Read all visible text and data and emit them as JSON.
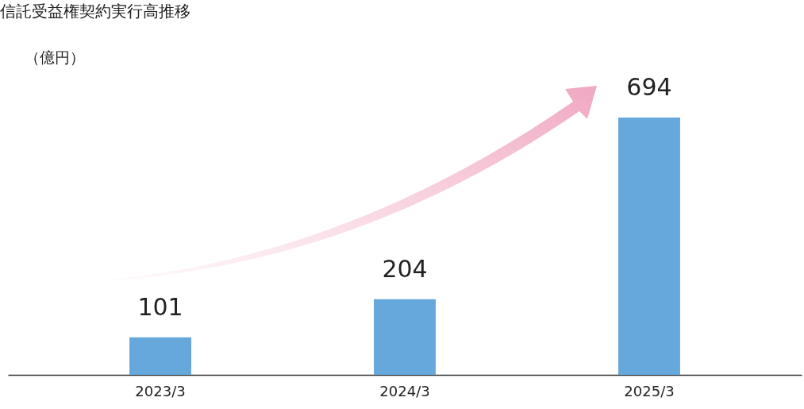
{
  "chart_data": {
    "type": "bar",
    "title": "信託受益権契約実行高推移",
    "ylabel": "（億円）",
    "categories": [
      "2023/3",
      "2024/3",
      "2025/3"
    ],
    "values": [
      101,
      204,
      694
    ],
    "color": "#66a8dc",
    "data_labels": true
  }
}
